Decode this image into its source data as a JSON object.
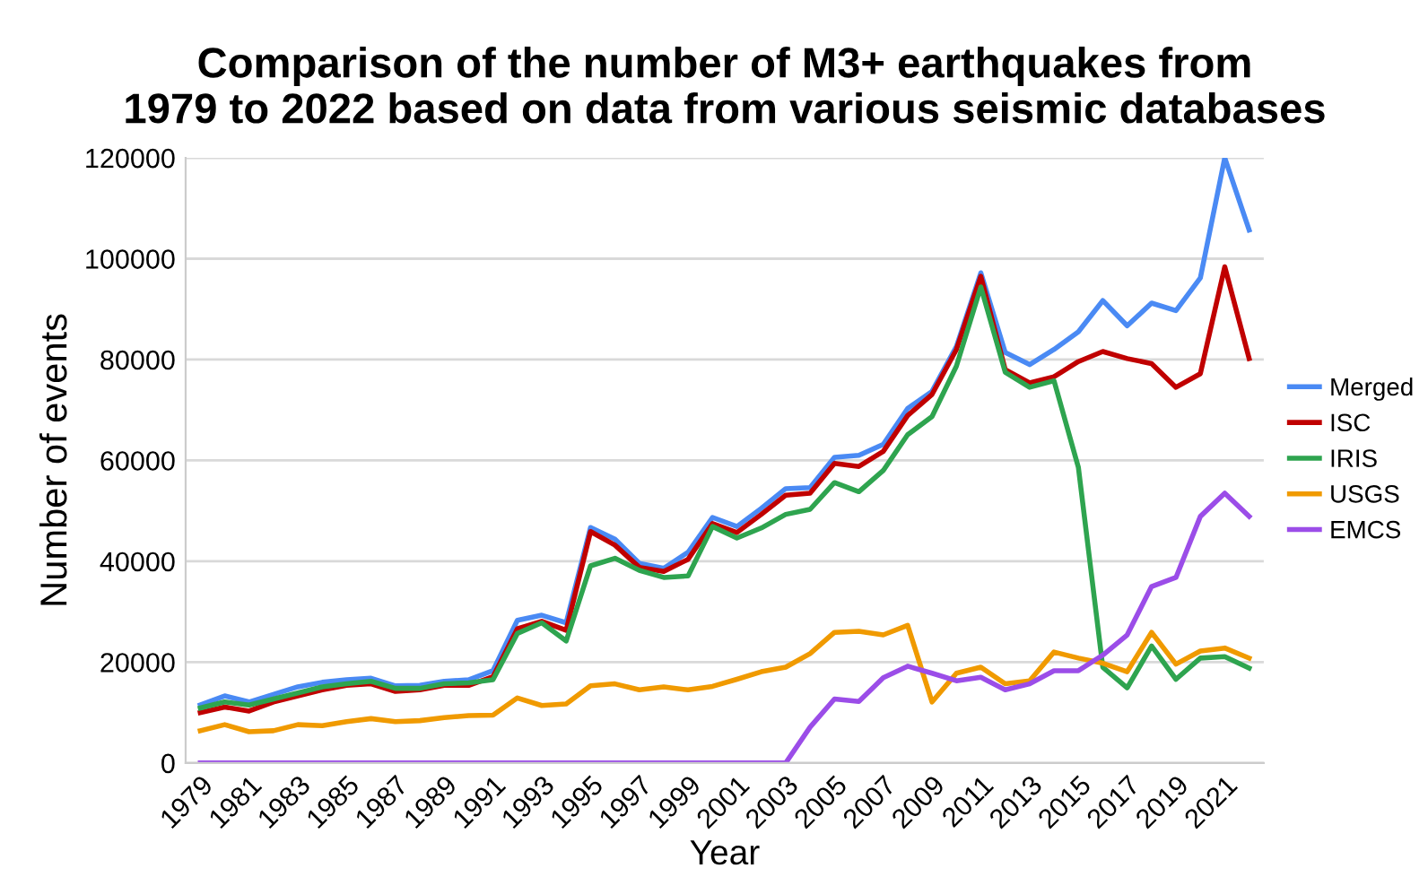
{
  "chart_data": {
    "type": "line",
    "title": "Comparison of the number of M3+ earthquakes from\n1979 to 2022 based on data from various seismic databases",
    "xlabel": "Year",
    "ylabel": "Number of events",
    "categories": [
      "1979",
      null,
      "1981",
      null,
      "1983",
      null,
      "1985",
      null,
      "1987",
      null,
      "1989",
      null,
      "1991",
      null,
      "1993",
      null,
      "1995",
      null,
      "1997",
      null,
      "1999",
      null,
      "2001",
      null,
      "2003",
      null,
      "2005",
      null,
      "2007",
      null,
      "2009",
      null,
      "2011",
      null,
      "2013",
      null,
      "2015",
      null,
      "2017",
      null,
      "2019",
      null,
      "2021",
      null
    ],
    "series": [
      {
        "name": "Merged",
        "color": "#4a8af4",
        "values": [
          11500,
          13300,
          12100,
          13600,
          15100,
          16000,
          16500,
          16800,
          15300,
          15400,
          16200,
          16500,
          18300,
          28300,
          29300,
          27800,
          46700,
          44400,
          39600,
          38600,
          41800,
          48700,
          46900,
          50500,
          54400,
          54600,
          60600,
          61000,
          63200,
          70300,
          73700,
          82600,
          97200,
          81400,
          79000,
          82000,
          85500,
          91700,
          86700,
          91200,
          89700,
          96200,
          120000,
          105700
        ]
      },
      {
        "name": "ISC",
        "color": "#c00000",
        "values": [
          10000,
          11100,
          10300,
          12100,
          13300,
          14500,
          15400,
          15700,
          14200,
          14500,
          15400,
          15400,
          17100,
          26600,
          28100,
          26300,
          45900,
          43200,
          38800,
          38000,
          40400,
          47500,
          45700,
          49300,
          53100,
          53500,
          59400,
          58800,
          61800,
          68900,
          73100,
          82000,
          96500,
          78000,
          75400,
          76600,
          79600,
          81600,
          80200,
          79200,
          74500,
          77200,
          98400,
          80200
        ]
      },
      {
        "name": "IRIS",
        "color": "#2ea44f",
        "values": [
          10900,
          12100,
          11500,
          12700,
          13900,
          15100,
          15700,
          16200,
          14800,
          14800,
          15700,
          15900,
          16500,
          25700,
          27800,
          24200,
          39100,
          40600,
          38200,
          36800,
          37100,
          46900,
          44600,
          46600,
          49300,
          50300,
          55600,
          53800,
          58000,
          65100,
          68700,
          78700,
          94400,
          77500,
          74500,
          75800,
          58600,
          19000,
          14900,
          23200,
          16600,
          20800,
          21100,
          18800
        ]
      },
      {
        "name": "USGS",
        "color": "#f09a00",
        "values": [
          6400,
          7600,
          6200,
          6400,
          7600,
          7400,
          8200,
          8800,
          8200,
          8400,
          9000,
          9400,
          9500,
          12900,
          11400,
          11700,
          15300,
          15700,
          14500,
          15100,
          14500,
          15200,
          16600,
          18100,
          19000,
          21700,
          25900,
          26100,
          25400,
          27300,
          12100,
          17800,
          19000,
          15700,
          16300,
          22000,
          20800,
          19800,
          18100,
          25900,
          19600,
          22200,
          22800,
          20800
        ]
      },
      {
        "name": "EMCS",
        "color": "#9b4de8",
        "values": [
          0,
          0,
          0,
          0,
          0,
          0,
          0,
          0,
          0,
          0,
          0,
          0,
          0,
          0,
          0,
          0,
          0,
          0,
          0,
          0,
          0,
          0,
          0,
          0,
          0,
          7100,
          12700,
          12200,
          16900,
          19200,
          17800,
          16300,
          17000,
          14500,
          15700,
          18300,
          18300,
          21400,
          25400,
          35000,
          36800,
          48900,
          53500,
          48900
        ]
      }
    ],
    "ylim": [
      0,
      120000
    ],
    "yticks": [
      0,
      20000,
      40000,
      60000,
      80000,
      100000,
      120000
    ],
    "grid": "y",
    "legend": "right",
    "marker": "none",
    "line_style": "solid"
  }
}
